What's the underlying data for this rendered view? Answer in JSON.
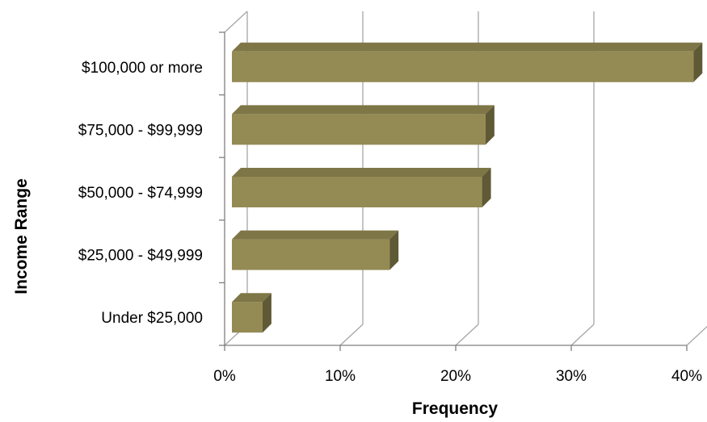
{
  "chart_data": {
    "type": "bar",
    "orientation": "horizontal",
    "style": "3d",
    "title": "",
    "xlabel": "Frequency",
    "ylabel": "Income Range",
    "categories": [
      "Under $25,000",
      "$25,000 - $49,999",
      "$50,000 - $74,999",
      "$75,000 - $99,999",
      "$100,000 or more"
    ],
    "values": [
      3,
      14,
      22,
      22.3,
      40.3
    ],
    "xlim": [
      0,
      40
    ],
    "xticks": [
      0,
      10,
      20,
      30,
      40
    ],
    "xtick_labels": [
      "0%",
      "10%",
      "20%",
      "30%",
      "40%"
    ],
    "grid": true,
    "legend": "none",
    "colors": {
      "bar_front": "#948A54",
      "bar_top": "#7E7646",
      "bar_side": "#5F5935",
      "gridline": "#A6A6A6",
      "axis": "#7F7F7F"
    }
  }
}
